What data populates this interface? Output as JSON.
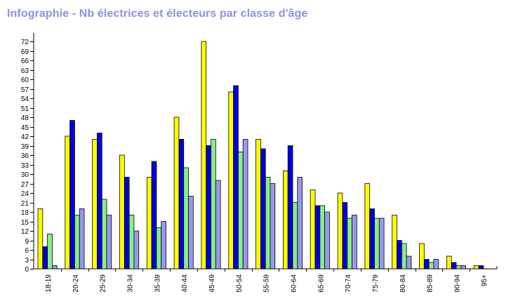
{
  "title": "Infographie - Nb électrices et électeurs par classe d'âge",
  "colors": {
    "title": "#8f8fe6",
    "series": [
      "#ffff00",
      "#0000dd",
      "#88ee88",
      "#9999ee"
    ]
  },
  "chart_data": {
    "type": "bar",
    "title": "Infographie - Nb électrices et électeurs par classe d'âge",
    "xlabel": "",
    "ylabel": "",
    "ylim": [
      0,
      74
    ],
    "yticks": [
      0,
      3,
      6,
      9,
      12,
      15,
      18,
      21,
      24,
      27,
      30,
      33,
      36,
      39,
      42,
      45,
      48,
      51,
      54,
      57,
      60,
      63,
      66,
      69,
      72
    ],
    "grid": false,
    "legend": "none",
    "categories": [
      "18-19",
      "20-24",
      "25-29",
      "30-34",
      "35-39",
      "40-44",
      "45-49",
      "50-54",
      "55-59",
      "60-64",
      "65-69",
      "70-74",
      "75-79",
      "80-84",
      "85-89",
      "90-94",
      "95+"
    ],
    "series": [
      {
        "values": [
          19,
          42,
          41,
          36,
          29,
          48,
          72,
          56,
          41,
          31,
          25,
          24,
          27,
          17,
          8,
          4,
          1
        ]
      },
      {
        "values": [
          7,
          47,
          43,
          29,
          34,
          41,
          39,
          58,
          38,
          39,
          20,
          21,
          19,
          9,
          3,
          2,
          1
        ]
      },
      {
        "values": [
          11,
          17,
          22,
          17,
          13,
          32,
          41,
          37,
          29,
          21,
          20,
          16,
          16,
          8,
          2,
          1,
          0
        ]
      },
      {
        "values": [
          1,
          19,
          17,
          12,
          15,
          23,
          28,
          41,
          27,
          29,
          18,
          17,
          16,
          4,
          3,
          1,
          0
        ]
      }
    ]
  }
}
